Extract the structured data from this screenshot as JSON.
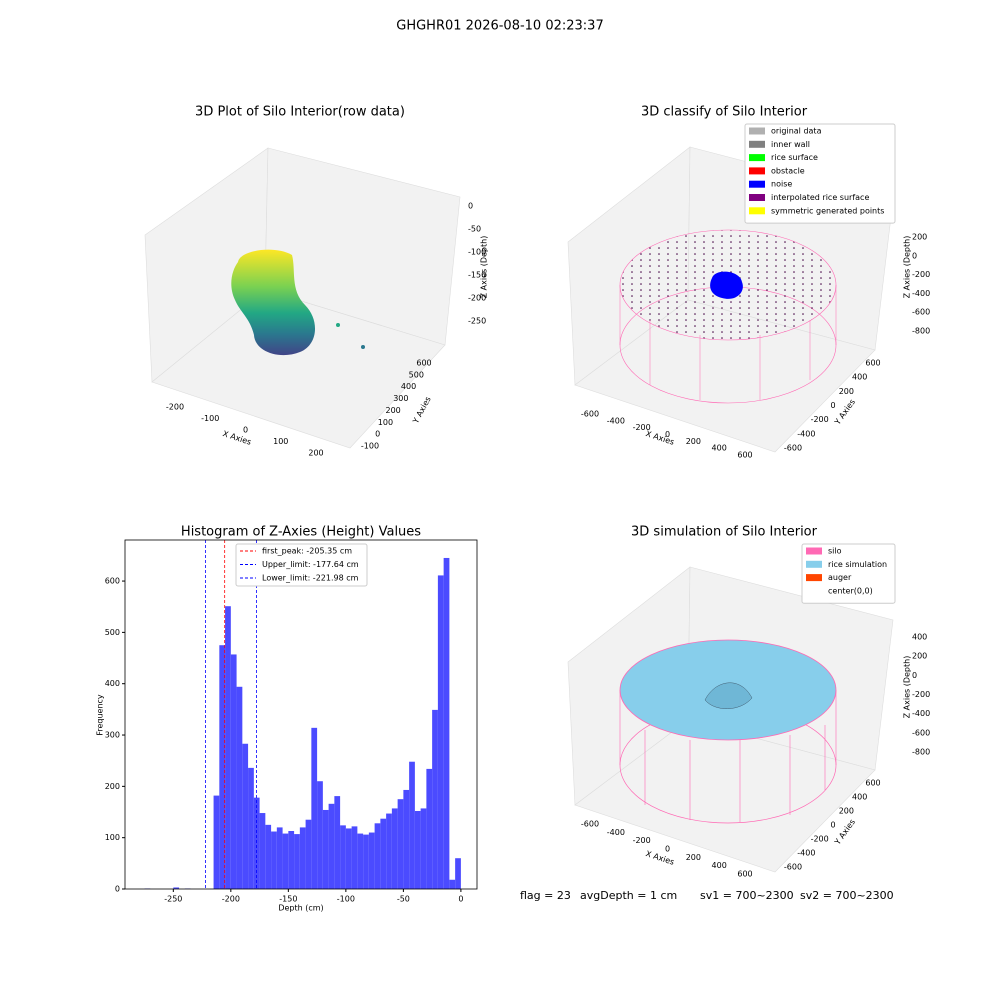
{
  "suptitle": "GHGHR01 2026-08-10 02:23:37",
  "chart_data": [
    {
      "type": "scatter3d",
      "title": "3D Plot of Silo Interior(row data)",
      "xlabel": "X Axies",
      "ylabel": "Y Axies",
      "zlabel": "Z Axies (Depth)",
      "xticks": [
        -200,
        -100,
        0,
        100,
        200
      ],
      "yticks": [
        -100,
        0,
        100,
        200,
        300,
        400,
        500,
        600
      ],
      "zticks": [
        0,
        -50,
        -100,
        -150,
        -200,
        -250
      ]
    },
    {
      "type": "scatter3d",
      "title": "3D classify of Silo Interior",
      "xlabel": "X Axies",
      "ylabel": "Y Axies",
      "zlabel": "Z Axies (Depth)",
      "xticks": [
        -600,
        -400,
        -200,
        0,
        200,
        400,
        600
      ],
      "yticks": [
        -600,
        -400,
        -200,
        0,
        200,
        400,
        600
      ],
      "zticks": [
        200,
        0,
        -200,
        -400,
        -600,
        -800
      ],
      "series": [
        {
          "name": "original data",
          "color": "#b0b0b0"
        },
        {
          "name": "inner wall",
          "color": "#808080"
        },
        {
          "name": "rice surface",
          "color": "#00ff00"
        },
        {
          "name": "obstacle",
          "color": "#ff0000"
        },
        {
          "name": "noise",
          "color": "#0000ff"
        },
        {
          "name": "interpolated rice surface",
          "color": "#800080"
        },
        {
          "name": "symmetric generated points",
          "color": "#ffff00"
        }
      ]
    },
    {
      "type": "histogram",
      "title": "Histogram of Z-Axies (Height) Values",
      "xlabel": "Depth (cm)",
      "ylabel": "Frequency",
      "color": "#4b4bff",
      "bins": [
        -280,
        -275,
        -270,
        -265,
        -260,
        -255,
        -250,
        -245,
        -240,
        -235,
        -230,
        -225,
        -220,
        -215,
        -210,
        -205,
        -200,
        -195,
        -190,
        -185,
        -180,
        -175,
        -170,
        -165,
        -160,
        -155,
        -150,
        -145,
        -140,
        -135,
        -130,
        -125,
        -120,
        -115,
        -110,
        -105,
        -100,
        -95,
        -90,
        -85,
        -80,
        -75,
        -70,
        -65,
        -60,
        -55,
        -50,
        -45,
        -40,
        -35,
        -30,
        -25,
        -20,
        -15,
        -10,
        -5,
        0
      ],
      "counts": [
        0,
        1,
        0,
        0,
        0,
        0,
        3,
        0,
        1,
        0,
        0,
        0,
        0,
        182,
        475,
        551,
        457,
        394,
        283,
        236,
        178,
        148,
        125,
        112,
        120,
        108,
        113,
        107,
        120,
        135,
        314,
        210,
        154,
        166,
        181,
        124,
        118,
        122,
        108,
        106,
        110,
        128,
        137,
        147,
        157,
        175,
        193,
        248,
        152,
        157,
        234,
        349,
        611,
        645,
        18,
        60
      ],
      "xlim": [
        -292,
        14
      ],
      "ylim": [
        0,
        680
      ],
      "xticks": [
        -250,
        -200,
        -150,
        -100,
        -50,
        0
      ],
      "yticks": [
        0,
        100,
        200,
        300,
        400,
        500,
        600
      ],
      "vlines": [
        {
          "label": "first_peak: -205.35 cm",
          "value": -205.35,
          "color": "#ff0000"
        },
        {
          "label": "Upper_limit: -177.64 cm",
          "value": -177.64,
          "color": "#0000ff"
        },
        {
          "label": "Lower_limit: -221.98 cm",
          "value": -221.98,
          "color": "#0000ff"
        }
      ]
    },
    {
      "type": "surface3d",
      "title": "3D simulation of Silo Interior",
      "xlabel": "X Axies",
      "ylabel": "Y Axies",
      "zlabel": "Z Axies (Depth)",
      "xticks": [
        -600,
        -400,
        -200,
        0,
        200,
        400,
        600
      ],
      "yticks": [
        -600,
        -400,
        -200,
        0,
        200,
        400,
        600
      ],
      "zticks": [
        400,
        200,
        0,
        -200,
        -400,
        -600,
        -800
      ],
      "series": [
        {
          "name": "silo",
          "color": "#ff69b4"
        },
        {
          "name": "rice simulation",
          "color": "#87ceeb"
        },
        {
          "name": "auger",
          "color": "#ff4500"
        },
        {
          "name": "center(0,0)",
          "color": "#ffffff"
        }
      ]
    }
  ],
  "footer": [
    "flag = 23",
    "avgDepth = 1 cm",
    "sv1 = 700~2300",
    "sv2 = 700~2300"
  ]
}
